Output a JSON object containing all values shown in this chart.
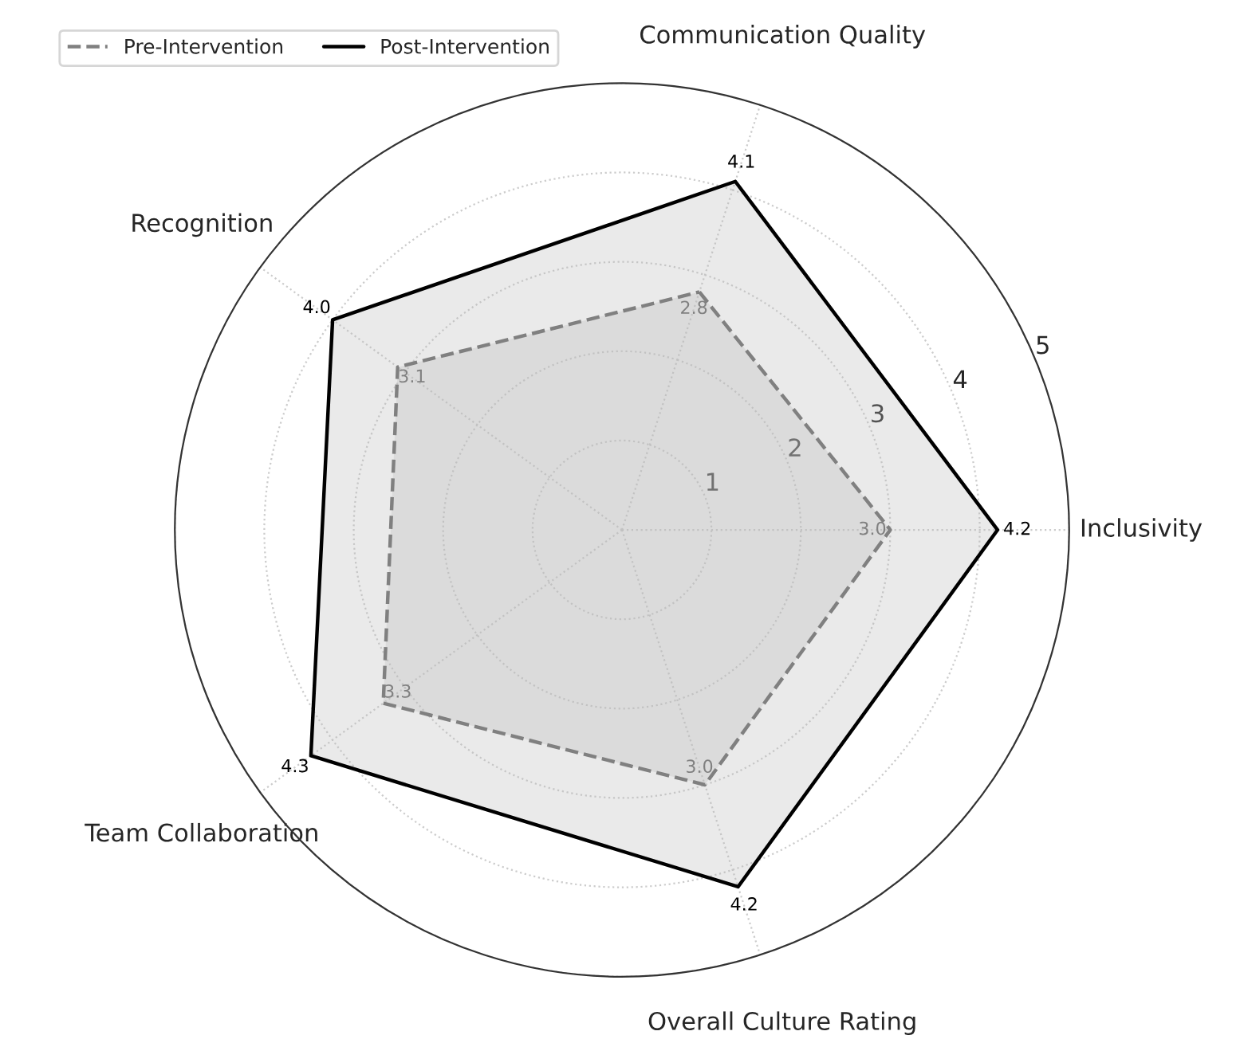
{
  "chart_data": {
    "type": "radar",
    "categories": [
      "Communication Quality",
      "Inclusivity",
      "Overall Culture Rating",
      "Team Collaboration",
      "Recognition"
    ],
    "series": [
      {
        "name": "Pre-Intervention",
        "color": "#808080",
        "line_style": "dashed",
        "values": [
          2.8,
          3.0,
          3.0,
          3.3,
          3.1
        ],
        "value_labels": [
          "2.8",
          "3.0",
          "3.0",
          "3.3",
          "3.1"
        ]
      },
      {
        "name": "Post-Intervention",
        "color": "#000000",
        "line_style": "solid",
        "values": [
          4.1,
          4.2,
          4.2,
          4.3,
          4.0
        ],
        "value_labels": [
          "4.1",
          "4.2",
          "4.2",
          "4.3",
          "4.0"
        ]
      }
    ],
    "ylim": [
      0,
      5
    ],
    "yticks": [
      1,
      2,
      3,
      4,
      5
    ],
    "grid": true,
    "legend": "top left",
    "marker": "none"
  }
}
